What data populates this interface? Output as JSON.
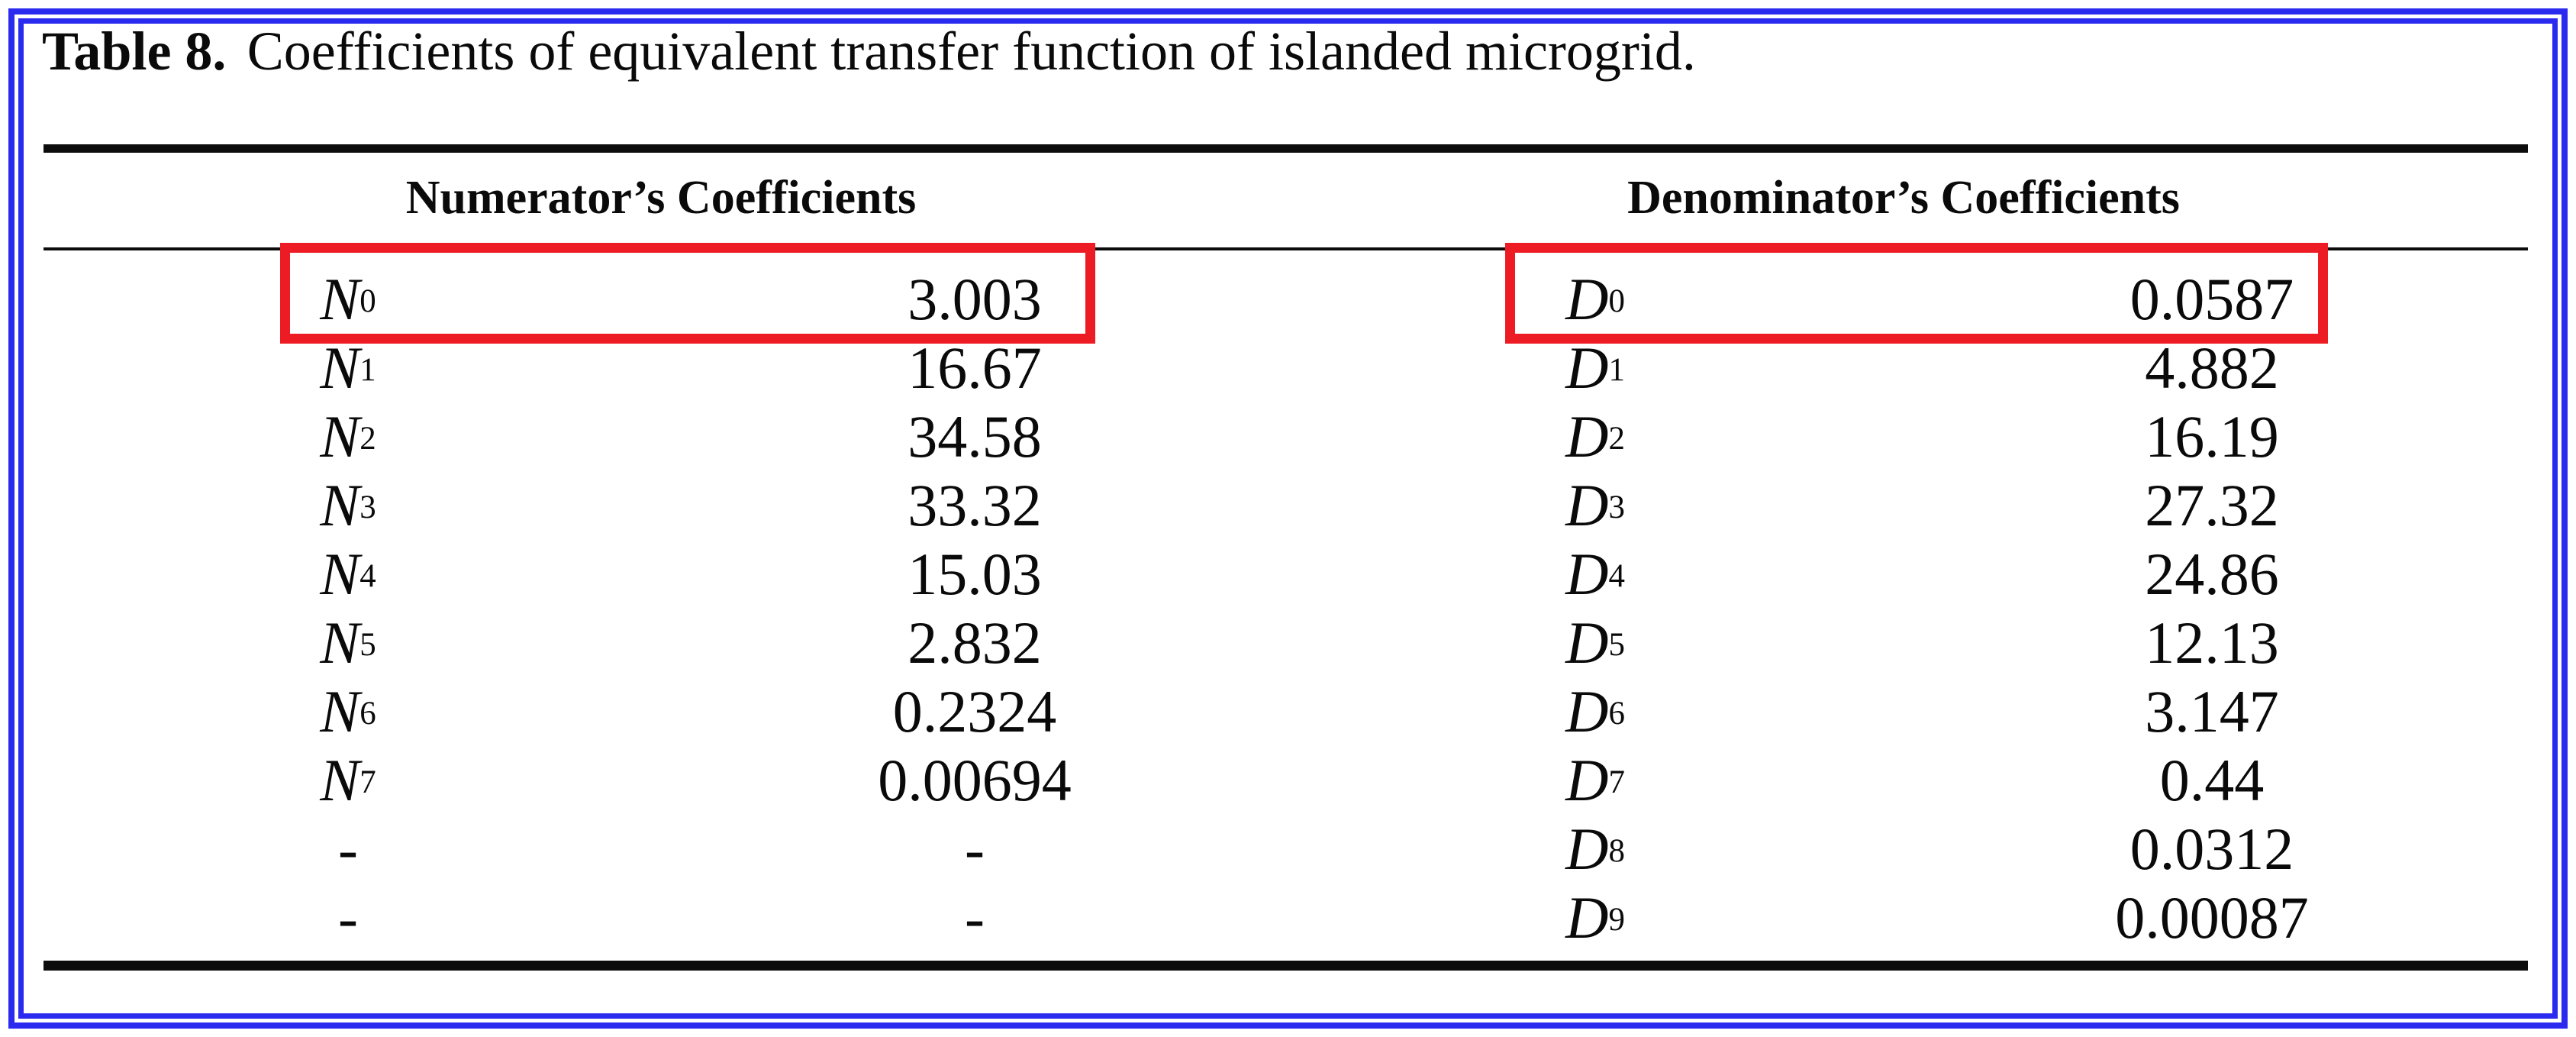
{
  "caption": {
    "label": "Table 8.",
    "text": "Coefficients of equivalent transfer function of islanded microgrid."
  },
  "table": {
    "headers": {
      "numerator": "Numerator’s Coefficients",
      "denominator": "Denominator’s Coefficients"
    },
    "numerator_rows": [
      {
        "base": "N",
        "sub": "0",
        "value": "3.003"
      },
      {
        "base": "N",
        "sub": "1",
        "value": "16.67"
      },
      {
        "base": "N",
        "sub": "2",
        "value": "34.58"
      },
      {
        "base": "N",
        "sub": "3",
        "value": "33.32"
      },
      {
        "base": "N",
        "sub": "4",
        "value": "15.03"
      },
      {
        "base": "N",
        "sub": "5",
        "value": "2.832"
      },
      {
        "base": "N",
        "sub": "6",
        "value": "0.2324"
      },
      {
        "base": "N",
        "sub": "7",
        "value": "0.00694"
      },
      {
        "base": "-",
        "sub": "",
        "value": "-"
      },
      {
        "base": "-",
        "sub": "",
        "value": "-"
      }
    ],
    "denominator_rows": [
      {
        "base": "D",
        "sub": "0",
        "value": "0.0587"
      },
      {
        "base": "D",
        "sub": "1",
        "value": "4.882"
      },
      {
        "base": "D",
        "sub": "2",
        "value": "16.19"
      },
      {
        "base": "D",
        "sub": "3",
        "value": "27.32"
      },
      {
        "base": "D",
        "sub": "4",
        "value": "24.86"
      },
      {
        "base": "D",
        "sub": "5",
        "value": "12.13"
      },
      {
        "base": "D",
        "sub": "6",
        "value": "3.147"
      },
      {
        "base": "D",
        "sub": "7",
        "value": "0.44"
      },
      {
        "base": "D",
        "sub": "8",
        "value": "0.0312"
      },
      {
        "base": "D",
        "sub": "9",
        "value": "0.00087"
      }
    ]
  },
  "annotations": {
    "highlighted_rows": [
      "N0",
      "D0"
    ],
    "highlight_color": "#ed1c24",
    "frame_color": "#2b2bf0",
    "rule_color": "#0c0c0c"
  }
}
